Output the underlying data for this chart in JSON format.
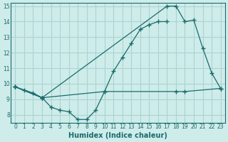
{
  "background_color": "#ceecea",
  "grid_color": "#aad4d0",
  "line_color": "#1a6b6b",
  "xlabel": "Humidex (Indice chaleur)",
  "xlim": [
    -0.5,
    23.5
  ],
  "ylim": [
    7.5,
    15.2
  ],
  "yticks": [
    8,
    9,
    10,
    11,
    12,
    13,
    14,
    15
  ],
  "xticks": [
    0,
    1,
    2,
    3,
    4,
    5,
    6,
    7,
    8,
    9,
    10,
    11,
    12,
    13,
    14,
    15,
    16,
    17,
    18,
    19,
    20,
    21,
    22,
    23
  ],
  "series": [
    {
      "x": [
        0,
        1,
        2,
        3,
        4,
        5,
        6,
        7,
        8,
        9,
        10,
        11,
        12,
        13,
        14,
        15,
        16,
        17
      ],
      "y": [
        9.8,
        9.6,
        9.4,
        9.1,
        8.5,
        8.3,
        8.2,
        7.7,
        7.7,
        8.3,
        9.5,
        10.8,
        11.7,
        12.6,
        13.5,
        13.8,
        14.0,
        14.0
      ]
    },
    {
      "x": [
        0,
        3,
        17,
        18,
        19,
        20,
        21,
        22,
        23
      ],
      "y": [
        9.8,
        9.1,
        15.0,
        15.0,
        14.0,
        14.1,
        12.3,
        10.7,
        9.7
      ]
    },
    {
      "x": [
        0,
        3,
        10,
        18,
        19,
        23
      ],
      "y": [
        9.8,
        9.1,
        9.5,
        9.5,
        9.5,
        9.7
      ]
    }
  ]
}
